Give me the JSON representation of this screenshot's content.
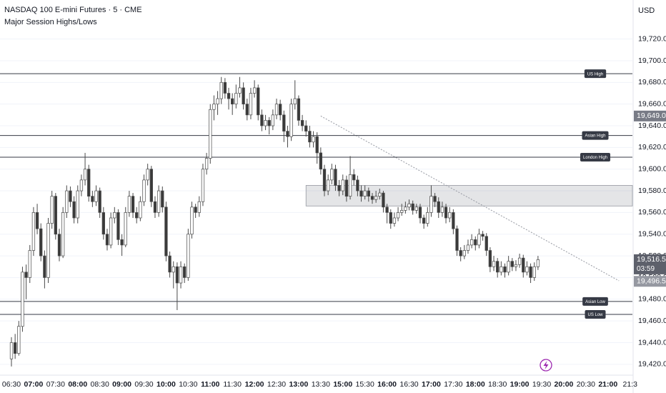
{
  "chart_data": {
    "type": "candlestick",
    "title": "NASDAQ 100 E-mini Futures · 5 · CME",
    "subtitle": "Major Session Highs/Lows",
    "currency": "USD",
    "up_color": "#ffffff",
    "down_color": "#3a3a3a",
    "wick_color": "#4a4a4a",
    "grid": true,
    "ylim": [
      19410,
      19756
    ],
    "yticks": [
      {
        "value": 19420,
        "label": "19,420.00"
      },
      {
        "value": 19440,
        "label": "19,440.00"
      },
      {
        "value": 19460,
        "label": "19,460.00"
      },
      {
        "value": 19480,
        "label": "19,480.00"
      },
      {
        "value": 19500,
        "label": "19,500.00"
      },
      {
        "value": 19520,
        "label": "19,520.00"
      },
      {
        "value": 19540,
        "label": "19,540.00"
      },
      {
        "value": 19560,
        "label": "19,560.00"
      },
      {
        "value": 19580,
        "label": "19,580.00"
      },
      {
        "value": 19600,
        "label": "19,600.00"
      },
      {
        "value": 19620,
        "label": "19,620.00"
      },
      {
        "value": 19640,
        "label": "19,640.00"
      },
      {
        "value": 19660,
        "label": "19,660.00"
      },
      {
        "value": 19680,
        "label": "19,680.00"
      },
      {
        "value": 19700,
        "label": "19,700.00"
      },
      {
        "value": 19720,
        "label": "19,720.00"
      }
    ],
    "categories": [
      "06:30",
      null,
      null,
      null,
      null,
      null,
      "07:00",
      null,
      null,
      null,
      null,
      null,
      "07:30",
      null,
      null,
      null,
      null,
      null,
      "08:00",
      null,
      null,
      null,
      null,
      null,
      "08:30",
      null,
      null,
      null,
      null,
      null,
      "09:00",
      null,
      null,
      null,
      null,
      null,
      "09:30",
      null,
      null,
      null,
      null,
      null,
      "10:00",
      null,
      null,
      null,
      null,
      null,
      "10:30",
      null,
      null,
      null,
      null,
      null,
      "11:00",
      null,
      null,
      null,
      null,
      null,
      "11:30",
      null,
      null,
      null,
      null,
      null,
      "12:00",
      null,
      null,
      null,
      null,
      null,
      "12:30",
      null,
      null,
      null,
      null,
      null,
      "13:00",
      null,
      null,
      null,
      null,
      null,
      "13:30",
      null,
      null,
      null,
      null,
      null,
      "15:00",
      null,
      null,
      null,
      null,
      null,
      "15:30",
      null,
      null,
      null,
      null,
      null,
      "16:00",
      null,
      null,
      null,
      null,
      null,
      "16:30",
      null,
      null,
      null,
      null,
      null,
      "17:00",
      null,
      null,
      null,
      null,
      null,
      "17:30",
      null,
      null,
      null,
      null,
      null,
      "18:00",
      null,
      null,
      null,
      null,
      null,
      "18:30",
      null,
      null,
      null,
      null,
      null,
      "19:00",
      null,
      null,
      null,
      null,
      null,
      "19:30",
      null,
      null,
      null,
      null,
      null,
      "20:00",
      null,
      null,
      null,
      null,
      null,
      "20:30",
      null,
      null,
      null,
      null,
      null,
      "21:00",
      null,
      null,
      null,
      null,
      null,
      "21:3"
    ],
    "ohlc": [
      [
        19425,
        19445,
        19418,
        19440
      ],
      [
        19440,
        19448,
        19425,
        19430
      ],
      [
        19430,
        19460,
        19428,
        19455
      ],
      [
        19455,
        19510,
        19450,
        19505
      ],
      [
        19505,
        19512,
        19480,
        19500
      ],
      [
        19500,
        19530,
        19495,
        19525
      ],
      [
        19525,
        19565,
        19520,
        19560
      ],
      [
        19560,
        19568,
        19540,
        19545
      ],
      [
        19545,
        19550,
        19515,
        19520
      ],
      [
        19520,
        19525,
        19490,
        19500
      ],
      [
        19500,
        19555,
        19495,
        19550
      ],
      [
        19550,
        19580,
        19545,
        19575
      ],
      [
        19575,
        19578,
        19535,
        19540
      ],
      [
        19540,
        19545,
        19515,
        19520
      ],
      [
        19520,
        19565,
        19518,
        19560
      ],
      [
        19560,
        19585,
        19555,
        19580
      ],
      [
        19580,
        19584,
        19565,
        19570
      ],
      [
        19570,
        19575,
        19550,
        19555
      ],
      [
        19555,
        19585,
        19550,
        19580
      ],
      [
        19580,
        19595,
        19575,
        19590
      ],
      [
        19590,
        19615,
        19585,
        19600
      ],
      [
        19600,
        19604,
        19570,
        19575
      ],
      [
        19575,
        19580,
        19565,
        19570
      ],
      [
        19570,
        19585,
        19566,
        19580
      ],
      [
        19580,
        19583,
        19555,
        19560
      ],
      [
        19560,
        19565,
        19535,
        19540
      ],
      [
        19540,
        19545,
        19525,
        19530
      ],
      [
        19530,
        19560,
        19527,
        19555
      ],
      [
        19555,
        19565,
        19550,
        19560
      ],
      [
        19560,
        19563,
        19530,
        19535
      ],
      [
        19535,
        19540,
        19520,
        19530
      ],
      [
        19530,
        19565,
        19528,
        19560
      ],
      [
        19560,
        19580,
        19556,
        19575
      ],
      [
        19575,
        19578,
        19555,
        19560
      ],
      [
        19560,
        19565,
        19550,
        19555
      ],
      [
        19555,
        19575,
        19552,
        19570
      ],
      [
        19570,
        19595,
        19566,
        19590
      ],
      [
        19590,
        19605,
        19585,
        19600
      ],
      [
        19600,
        19603,
        19565,
        19570
      ],
      [
        19570,
        19575,
        19555,
        19560
      ],
      [
        19560,
        19585,
        19556,
        19580
      ],
      [
        19580,
        19584,
        19560,
        19565
      ],
      [
        19565,
        19570,
        19515,
        19520
      ],
      [
        19520,
        19524,
        19500,
        19505
      ],
      [
        19505,
        19515,
        19490,
        19510
      ],
      [
        19510,
        19514,
        19470,
        19495
      ],
      [
        19495,
        19515,
        19490,
        19510
      ],
      [
        19510,
        19513,
        19495,
        19500
      ],
      [
        19500,
        19545,
        19497,
        19540
      ],
      [
        19540,
        19570,
        19536,
        19565
      ],
      [
        19565,
        19568,
        19555,
        19560
      ],
      [
        19560,
        19575,
        19556,
        19570
      ],
      [
        19570,
        19605,
        19566,
        19600
      ],
      [
        19600,
        19615,
        19595,
        19610
      ],
      [
        19610,
        19660,
        19605,
        19655
      ],
      [
        19655,
        19668,
        19645,
        19660
      ],
      [
        19660,
        19672,
        19650,
        19665
      ],
      [
        19665,
        19685,
        19660,
        19680
      ],
      [
        19680,
        19684,
        19665,
        19670
      ],
      [
        19670,
        19675,
        19655,
        19665
      ],
      [
        19665,
        19670,
        19650,
        19660
      ],
      [
        19660,
        19678,
        19656,
        19670
      ],
      [
        19670,
        19685,
        19666,
        19675
      ],
      [
        19675,
        19680,
        19655,
        19660
      ],
      [
        19660,
        19665,
        19645,
        19650
      ],
      [
        19650,
        19675,
        19646,
        19670
      ],
      [
        19670,
        19682,
        19666,
        19675
      ],
      [
        19675,
        19678,
        19645,
        19650
      ],
      [
        19650,
        19655,
        19635,
        19640
      ],
      [
        19640,
        19650,
        19636,
        19645
      ],
      [
        19645,
        19648,
        19632,
        19640
      ],
      [
        19640,
        19655,
        19636,
        19650
      ],
      [
        19650,
        19665,
        19646,
        19660
      ],
      [
        19660,
        19664,
        19645,
        19650
      ],
      [
        19650,
        19654,
        19625,
        19635
      ],
      [
        19635,
        19640,
        19620,
        19630
      ],
      [
        19630,
        19665,
        19626,
        19660
      ],
      [
        19660,
        19682,
        19655,
        19665
      ],
      [
        19665,
        19668,
        19640,
        19645
      ],
      [
        19645,
        19650,
        19635,
        19640
      ],
      [
        19640,
        19645,
        19630,
        19635
      ],
      [
        19635,
        19640,
        19620,
        19625
      ],
      [
        19625,
        19635,
        19620,
        19630
      ],
      [
        19630,
        19634,
        19605,
        19615
      ],
      [
        19615,
        19620,
        19595,
        19600
      ],
      [
        19600,
        19604,
        19575,
        19580
      ],
      [
        19580,
        19595,
        19576,
        19590
      ],
      [
        19590,
        19605,
        19586,
        19600
      ],
      [
        19600,
        19604,
        19580,
        19585
      ],
      [
        19585,
        19590,
        19575,
        19580
      ],
      [
        19580,
        19595,
        19576,
        19590
      ],
      [
        19590,
        19594,
        19570,
        19575
      ],
      [
        19575,
        19612,
        19572,
        19595
      ],
      [
        19595,
        19600,
        19585,
        19590
      ],
      [
        19590,
        19594,
        19575,
        19580
      ],
      [
        19580,
        19585,
        19570,
        19575
      ],
      [
        19575,
        19585,
        19572,
        19580
      ],
      [
        19580,
        19583,
        19570,
        19575
      ],
      [
        19575,
        19578,
        19568,
        19572
      ],
      [
        19572,
        19580,
        19569,
        19575
      ],
      [
        19575,
        19582,
        19572,
        19578
      ],
      [
        19578,
        19580,
        19560,
        19565
      ],
      [
        19565,
        19568,
        19550,
        19560
      ],
      [
        19560,
        19563,
        19545,
        19550
      ],
      [
        19550,
        19560,
        19547,
        19555
      ],
      [
        19555,
        19565,
        19552,
        19560
      ],
      [
        19560,
        19568,
        19557,
        19562
      ],
      [
        19562,
        19570,
        19559,
        19565
      ],
      [
        19565,
        19572,
        19562,
        19568
      ],
      [
        19568,
        19571,
        19558,
        19562
      ],
      [
        19562,
        19568,
        19559,
        19565
      ],
      [
        19565,
        19568,
        19550,
        19555
      ],
      [
        19555,
        19558,
        19545,
        19550
      ],
      [
        19550,
        19565,
        19547,
        19560
      ],
      [
        19560,
        19585,
        19556,
        19575
      ],
      [
        19575,
        19578,
        19565,
        19570
      ],
      [
        19570,
        19574,
        19555,
        19560
      ],
      [
        19560,
        19570,
        19556,
        19565
      ],
      [
        19565,
        19568,
        19550,
        19555
      ],
      [
        19555,
        19565,
        19551,
        19560
      ],
      [
        19560,
        19563,
        19540,
        19545
      ],
      [
        19545,
        19548,
        19520,
        19525
      ],
      [
        19525,
        19528,
        19515,
        19520
      ],
      [
        19520,
        19530,
        19517,
        19525
      ],
      [
        19525,
        19535,
        19522,
        19530
      ],
      [
        19530,
        19540,
        19527,
        19535
      ],
      [
        19535,
        19538,
        19525,
        19530
      ],
      [
        19530,
        19545,
        19527,
        19540
      ],
      [
        19540,
        19543,
        19534,
        19538
      ],
      [
        19538,
        19541,
        19520,
        19525
      ],
      [
        19525,
        19528,
        19505,
        19510
      ],
      [
        19510,
        19520,
        19506,
        19515
      ],
      [
        19515,
        19518,
        19500,
        19505
      ],
      [
        19505,
        19515,
        19502,
        19510
      ],
      [
        19510,
        19513,
        19500,
        19505
      ],
      [
        19505,
        19520,
        19502,
        19515
      ],
      [
        19515,
        19518,
        19506,
        19510
      ],
      [
        19510,
        19516,
        19506,
        19512
      ],
      [
        19512,
        19522,
        19509,
        19518
      ],
      [
        19518,
        19521,
        19500,
        19505
      ],
      [
        19505,
        19515,
        19502,
        19510
      ],
      [
        19510,
        19513,
        19495,
        19500
      ],
      [
        19500,
        19514,
        19497,
        19510
      ],
      [
        19510,
        19520,
        19507,
        19516.5
      ],
      null,
      null,
      null,
      null,
      null,
      null,
      null,
      null,
      null,
      null,
      null,
      null,
      null,
      null,
      null,
      null,
      null,
      null,
      null,
      null,
      null,
      null,
      null,
      null,
      null
    ],
    "levels": [
      {
        "label": "US High",
        "value": 19688
      },
      {
        "label": "Asian High",
        "value": 19631
      },
      {
        "label": "London High",
        "value": 19611
      },
      {
        "label": "Asian Low",
        "value": 19478
      },
      {
        "label": "US Low",
        "value": 19466
      }
    ],
    "zone": {
      "start": 80,
      "high": 19585,
      "low": 19566
    },
    "trendline": {
      "start": [
        84,
        19649
      ],
      "end": [
        165,
        19497
      ]
    },
    "price_labels": [
      {
        "value": 19649,
        "label": "19,649.00",
        "color": "#787b86"
      },
      {
        "value": 19516.5,
        "label": "19,516.50",
        "countdown": "03:59",
        "color": "#5d606b"
      },
      {
        "value": 19496.5,
        "label": "19,496.50",
        "color": "#9598a1"
      }
    ]
  }
}
